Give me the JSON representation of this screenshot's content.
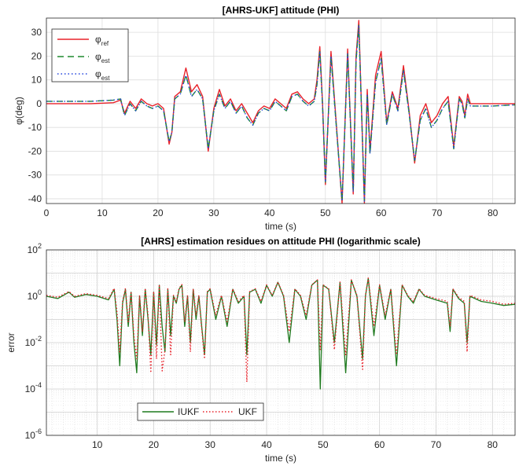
{
  "chart_data": [
    {
      "type": "line",
      "title": "[AHRS-UKF] attitude (PHI)",
      "xlabel": "time (s)",
      "ylabel": "φ(deg)",
      "xlim": [
        0,
        84
      ],
      "ylim": [
        -42,
        36
      ],
      "xticks": [
        "0",
        "10",
        "20",
        "30",
        "40",
        "50",
        "60",
        "70",
        "80"
      ],
      "yticks": [
        "-40",
        "-30",
        "-20",
        "-10",
        "0",
        "10",
        "20",
        "30"
      ],
      "grid": true,
      "legend_position": "top-left",
      "x": [
        0,
        8,
        12,
        13.3,
        14,
        15,
        16,
        17,
        18,
        19,
        20,
        21,
        22,
        22.5,
        23,
        24,
        25,
        26,
        27,
        28,
        29,
        30,
        31,
        32,
        33,
        34,
        35,
        36,
        37,
        38,
        39,
        40,
        41,
        42,
        43,
        44,
        45,
        46,
        47,
        48,
        48.5,
        49,
        49.5,
        50,
        51,
        52,
        53,
        54,
        55,
        55.5,
        56,
        57,
        57.5,
        58,
        59,
        60,
        61,
        62,
        63,
        64,
        65,
        66,
        67,
        68,
        69,
        70,
        71,
        72,
        73,
        74,
        74.5,
        75,
        75.5,
        76,
        80,
        84
      ],
      "series": [
        {
          "name": "φ_ref",
          "color": "#e8222a",
          "dash": "solid",
          "values": [
            0,
            0,
            0.4,
            1.5,
            -4,
            1,
            -2,
            2,
            0,
            -1,
            0,
            -2,
            -17,
            -12,
            3,
            5,
            15,
            5,
            8,
            3,
            -20,
            -2,
            6,
            -1,
            2,
            -3,
            0,
            -4,
            -8,
            -3,
            -1,
            -2,
            2,
            0,
            -2,
            4,
            5,
            2,
            0,
            2,
            10,
            24,
            0,
            -34,
            22,
            -10,
            -42,
            23,
            -38,
            20,
            35,
            -42,
            6,
            -20,
            12,
            22,
            -8,
            5,
            -2,
            16,
            -3,
            -25,
            -5,
            0,
            -8,
            -5,
            0,
            3,
            -18,
            3,
            1,
            -5,
            4,
            0,
            0,
            0
          ]
        },
        {
          "name": "φ_est",
          "color": "#1f8a2e",
          "dash": "8,5",
          "values": [
            1,
            1,
            1.5,
            2,
            -5,
            0,
            -3,
            1,
            -1,
            -2,
            -1,
            -3,
            -16,
            -12,
            2,
            4,
            12,
            3,
            6,
            2,
            -19,
            -3,
            4,
            -2,
            1,
            -4,
            -1,
            -6,
            -9,
            -4,
            -2,
            -3,
            1,
            -1,
            -3,
            3,
            4,
            1,
            -1,
            1,
            8,
            22,
            -1,
            -33,
            20,
            -11,
            -41,
            21,
            -37,
            18,
            33,
            -41,
            4,
            -21,
            9,
            19,
            -9,
            4,
            -3,
            14,
            -4,
            -24,
            -7,
            -2,
            -10,
            -7,
            -2,
            1,
            -19,
            2,
            0,
            -6,
            2,
            -1,
            -1,
            -0.5
          ]
        },
        {
          "name": "φ_est",
          "color": "#2244dd",
          "dash": "1.5,3",
          "values": [
            1,
            1,
            1.5,
            2,
            -5,
            0,
            -3,
            1,
            -1,
            -2,
            -1,
            -3,
            -16,
            -12,
            2,
            4,
            12,
            3,
            6,
            2,
            -19,
            -3,
            4,
            -2,
            1,
            -4,
            -1,
            -6,
            -9,
            -4,
            -2,
            -3,
            1,
            -1,
            -3,
            3,
            4,
            1,
            -1,
            1,
            8,
            22,
            -1,
            -33,
            20,
            -11,
            -41,
            21,
            -37,
            18,
            33,
            -41,
            4,
            -21,
            9,
            19,
            -9,
            4,
            -3,
            14,
            -4,
            -24,
            -7,
            -2,
            -10,
            -7,
            -2,
            1,
            -19,
            2,
            0,
            -6,
            2,
            -1,
            -1,
            -0.5
          ]
        }
      ]
    },
    {
      "type": "line",
      "title": "[AHRS] estimation residues on attitude PHI (logarithmic scale)",
      "xlabel": "time (s)",
      "ylabel": "error",
      "yscale": "log",
      "xlim": [
        1,
        84
      ],
      "ylim": [
        1e-06,
        100
      ],
      "xticks": [
        "10",
        "20",
        "30",
        "40",
        "50",
        "60",
        "70",
        "80"
      ],
      "yticks": [
        {
          "base": "10",
          "exp": "2"
        },
        {
          "base": "10",
          "exp": "0"
        },
        {
          "base": "10",
          "exp": "-2"
        },
        {
          "base": "10",
          "exp": "-4"
        },
        {
          "base": "10",
          "exp": "-6"
        }
      ],
      "grid": true,
      "legend_position": "bottom-left",
      "x": [
        1,
        3,
        5,
        6,
        8,
        10,
        12,
        13,
        13.5,
        14,
        14.5,
        15,
        15.5,
        16,
        16.5,
        17,
        17.5,
        18,
        18.5,
        19,
        19.5,
        20,
        20.5,
        21,
        21.5,
        22,
        22.5,
        23,
        23.5,
        24,
        24.5,
        25,
        25.5,
        26,
        26.5,
        27,
        27.5,
        28,
        28.5,
        29,
        29.5,
        30,
        31,
        32,
        33,
        34,
        35,
        36,
        36.5,
        37,
        38,
        39,
        40,
        41,
        42,
        43,
        44,
        45,
        46,
        47,
        48,
        49,
        49.5,
        50,
        51,
        52,
        53,
        54,
        55,
        56,
        57,
        57.5,
        58,
        59,
        60,
        61,
        62,
        63,
        64,
        65,
        66,
        67,
        68,
        70,
        72,
        72.5,
        73,
        74,
        75,
        75.5,
        76,
        78,
        80,
        82,
        84
      ],
      "series": [
        {
          "name": "IUKF",
          "color": "#1f7a1f",
          "dash": "solid",
          "values": [
            1,
            0.8,
            1.5,
            0.9,
            1.2,
            1,
            0.7,
            2,
            0.1,
            0.001,
            0.5,
            2,
            0.05,
            1.5,
            0.01,
            0.0005,
            1,
            0.02,
            2,
            0.1,
            0.003,
            1.5,
            0.008,
            3,
            0.05,
            0.004,
            2,
            0.02,
            1,
            0.5,
            2,
            3,
            0.05,
            1,
            0.01,
            2,
            0.1,
            1,
            0.05,
            0.003,
            1.5,
            2,
            0.1,
            1,
            0.05,
            2,
            0.5,
            1,
            0.003,
            1.5,
            2,
            0.5,
            3,
            1,
            4,
            1,
            0.01,
            2,
            1,
            0.1,
            3,
            5,
            0.0001,
            3,
            2,
            0.01,
            4,
            0.0005,
            5,
            1,
            0.002,
            1,
            6,
            0.02,
            3,
            0.1,
            2,
            0.001,
            3,
            1,
            0.5,
            2,
            1,
            0.7,
            0.5,
            0.03,
            2,
            0.8,
            0.5,
            0.01,
            1,
            0.6,
            0.5,
            0.4,
            0.45
          ]
        },
        {
          "name": "UKF",
          "color": "#e8222a",
          "dash": "1.5,2.5",
          "values": [
            1.1,
            0.9,
            1.6,
            1,
            1.3,
            1.1,
            0.8,
            2.2,
            0.2,
            0.004,
            0.6,
            2.2,
            0.08,
            1.6,
            0.02,
            0.002,
            1.1,
            0.03,
            2.2,
            0.15,
            0.0005,
            1.6,
            0.002,
            3.2,
            0.0006,
            0.005,
            2.1,
            0.003,
            1.1,
            0.6,
            2.2,
            3.2,
            0.08,
            1.1,
            0.004,
            2.1,
            0.15,
            1.1,
            0.04,
            0.002,
            1.6,
            2.1,
            0.15,
            1.1,
            0.08,
            2.1,
            0.6,
            1.1,
            0.0002,
            1.6,
            2.1,
            0.6,
            3.1,
            1.1,
            4.1,
            1.1,
            0.03,
            2.1,
            1.1,
            0.15,
            3.1,
            5.1,
            0.005,
            3.1,
            2.1,
            0.005,
            4.1,
            0.003,
            5.1,
            1.1,
            0.0007,
            1.1,
            6.1,
            0.05,
            3.1,
            0.15,
            2.1,
            0.003,
            3.1,
            1.1,
            0.6,
            2.1,
            1.1,
            0.8,
            0.6,
            0.05,
            2.1,
            0.9,
            0.6,
            0.004,
            1.1,
            0.7,
            0.6,
            0.45,
            0.5
          ]
        }
      ]
    }
  ]
}
